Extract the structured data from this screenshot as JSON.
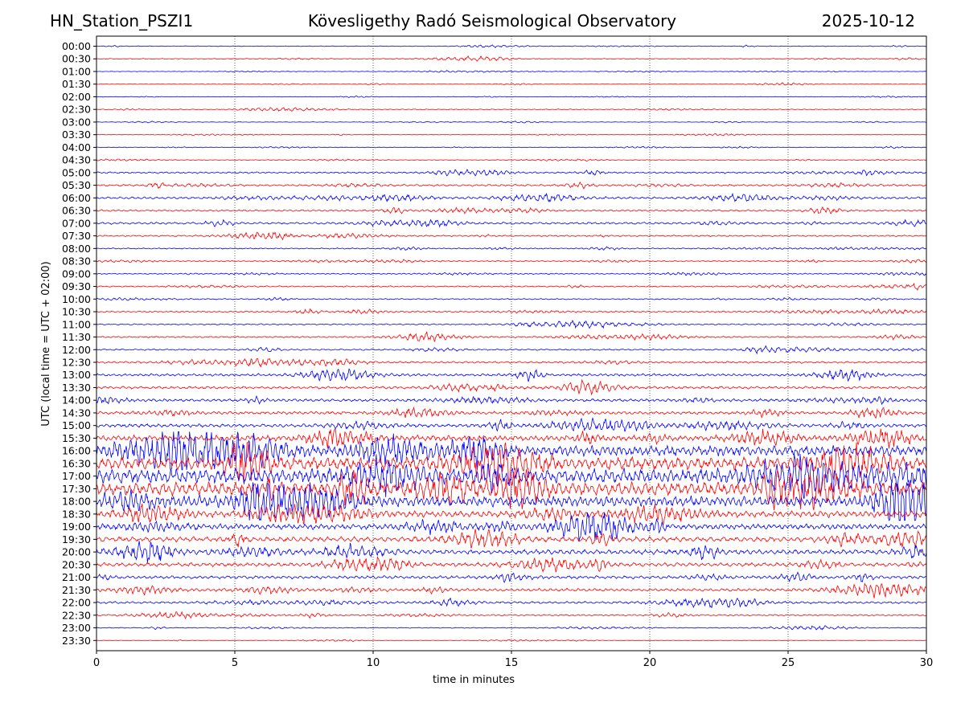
{
  "header": {
    "station": "HN_Station_PSZI1",
    "observatory": "Kövesligethy Radó Seismological Observatory",
    "date": "2025-10-12"
  },
  "chart_data": {
    "type": "line",
    "title": "Kövesligethy Radó Seismological Observatory",
    "xlabel": "time in minutes",
    "ylabel": "UTC (local time = UTC + 02:00)",
    "xlim": [
      0,
      30
    ],
    "x_ticks": [
      0,
      5,
      10,
      15,
      20,
      25,
      30
    ],
    "grid": "vertical dotted lines at 5-minute intervals",
    "trace_colors": [
      "#0000ff",
      "#ff0000"
    ],
    "row_labels": [
      "00:00",
      "00:30",
      "01:00",
      "01:30",
      "02:00",
      "02:30",
      "03:00",
      "03:30",
      "04:00",
      "04:30",
      "05:00",
      "05:30",
      "06:00",
      "06:30",
      "07:00",
      "07:30",
      "08:00",
      "08:30",
      "09:00",
      "09:30",
      "10:00",
      "10:30",
      "11:00",
      "11:30",
      "12:00",
      "12:30",
      "13:00",
      "13:30",
      "14:00",
      "14:30",
      "15:00",
      "15:30",
      "16:00",
      "16:30",
      "17:00",
      "17:30",
      "18:00",
      "18:30",
      "19:00",
      "19:30",
      "20:00",
      "20:30",
      "21:00",
      "21:30",
      "22:00",
      "22:30",
      "23:00",
      "23:30"
    ],
    "relative_amplitude": [
      0.4,
      0.5,
      0.3,
      0.3,
      0.3,
      0.5,
      0.3,
      0.3,
      0.4,
      0.4,
      1.0,
      1.2,
      1.4,
      1.0,
      1.3,
      0.9,
      0.7,
      0.7,
      0.7,
      0.8,
      0.7,
      0.9,
      0.8,
      0.9,
      0.9,
      1.2,
      1.6,
      1.6,
      1.8,
      1.8,
      2.2,
      3.5,
      6.5,
      8.0,
      9.0,
      8.5,
      6.5,
      4.0,
      3.5,
      3.2,
      3.0,
      2.4,
      2.0,
      1.8,
      1.4,
      0.9,
      0.5,
      0.3
    ]
  }
}
